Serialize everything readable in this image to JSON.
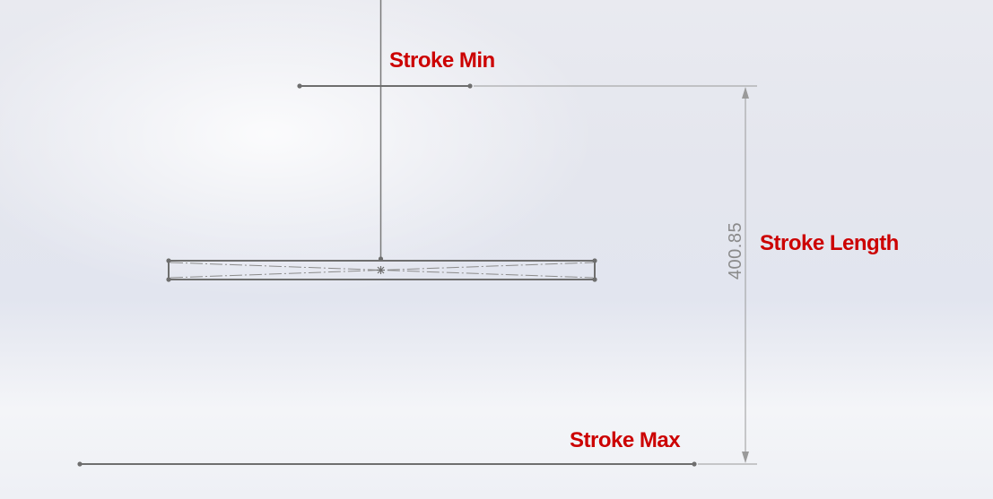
{
  "annotations": {
    "stroke_min": "Stroke Min",
    "stroke_length": "Stroke Length",
    "stroke_max": "Stroke Max"
  },
  "dimension": {
    "value": "400.85"
  },
  "colors": {
    "annotation": "#cc0000",
    "sketch_line": "#7a7a7a",
    "dimension_line": "#9a9a9a",
    "dimension_text": "#8a8a8a"
  }
}
